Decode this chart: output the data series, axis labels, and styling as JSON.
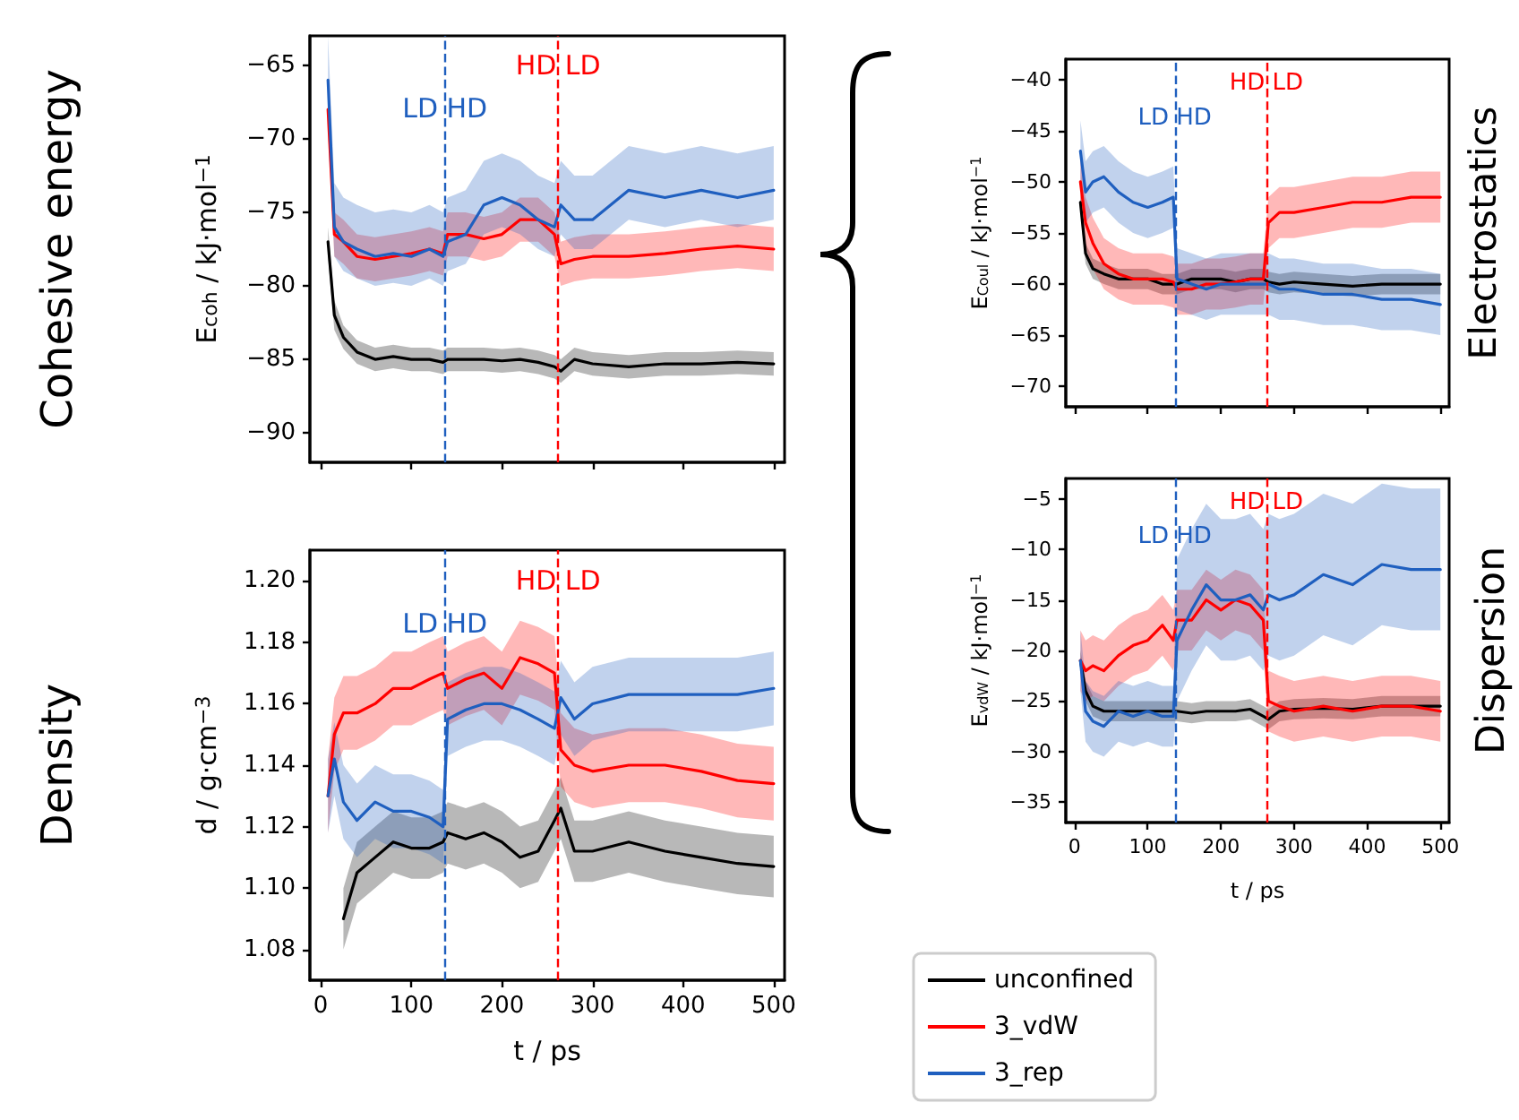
{
  "chart_data": [
    {
      "type": "line",
      "title": "Cohesive energy",
      "ylabel": "E$_{coh}$ / kJ·mol$^{−1}$",
      "tick_labels": "y",
      "xlim": [
        -12,
        512
      ],
      "xticks": [
        0,
        100,
        200,
        300,
        400,
        500
      ],
      "ylim": [
        -92,
        -63
      ],
      "yticks": [
        {
          "value": -90,
          "label": "−90"
        },
        {
          "value": -85,
          "label": "−85"
        },
        {
          "value": -80,
          "label": "−80"
        },
        {
          "value": -75,
          "label": "−75"
        },
        {
          "value": -70,
          "label": "−70"
        },
        {
          "value": -65,
          "label": "−65"
        }
      ],
      "x": [
        8,
        15,
        25,
        40,
        60,
        80,
        100,
        120,
        135,
        140,
        160,
        180,
        200,
        220,
        240,
        258,
        265,
        280,
        300,
        340,
        380,
        420,
        460,
        500
      ],
      "ref_lines": [
        {
          "axis": "x",
          "value": 137,
          "label": "LD HD",
          "color": "#1f5fbf",
          "line_style": "dashed"
        },
        {
          "axis": "x",
          "value": 262,
          "label": "HD LD",
          "color": "#ff0000",
          "line_style": "dashed"
        }
      ],
      "series": [
        {
          "color": "#000000",
          "values": [
            -77,
            -82,
            -83.5,
            -84.5,
            -85,
            -84.8,
            -85,
            -85,
            -85.2,
            -85,
            -85,
            -85,
            -85.1,
            -85,
            -85.2,
            -85.5,
            -85.8,
            -85,
            -85.3,
            -85.5,
            -85.3,
            -85.3,
            -85.2,
            -85.3
          ],
          "lower": [
            -78,
            -83,
            -84.3,
            -85.3,
            -85.8,
            -85.6,
            -85.8,
            -85.8,
            -86,
            -85.8,
            -85.8,
            -85.8,
            -85.9,
            -85.8,
            -86,
            -86.3,
            -86.6,
            -85.8,
            -86.1,
            -86.3,
            -86.1,
            -86.1,
            -86,
            -86.1
          ],
          "upper": [
            -76,
            -81,
            -82.7,
            -83.7,
            -84.2,
            -84,
            -84.2,
            -84.2,
            -84.4,
            -84.2,
            -84.2,
            -84.2,
            -84.3,
            -84.2,
            -84.4,
            -84.7,
            -85,
            -84.2,
            -84.5,
            -84.7,
            -84.5,
            -84.5,
            -84.4,
            -84.5
          ]
        },
        {
          "color": "#ff0000",
          "values": [
            -68,
            -76.5,
            -77,
            -78,
            -78.2,
            -78,
            -77.8,
            -77.5,
            -77.8,
            -76.5,
            -76.5,
            -76.8,
            -76.5,
            -75.5,
            -75.5,
            -76.5,
            -78.5,
            -78.2,
            -78,
            -78,
            -77.8,
            -77.5,
            -77.3,
            -77.5
          ],
          "lower": [
            -69.5,
            -78,
            -78.5,
            -79.5,
            -79.7,
            -79.5,
            -79.3,
            -79,
            -79.3,
            -78,
            -78,
            -78.3,
            -78,
            -77,
            -77,
            -78,
            -80,
            -79.7,
            -79.5,
            -79.5,
            -79.3,
            -79,
            -78.8,
            -79
          ],
          "upper": [
            -66.5,
            -75,
            -75.5,
            -76.5,
            -76.7,
            -76.5,
            -76.3,
            -76,
            -76.3,
            -75,
            -75,
            -75.3,
            -75,
            -74,
            -74,
            -75,
            -77,
            -76.7,
            -76.5,
            -76.5,
            -76.3,
            -76,
            -75.8,
            -76
          ]
        },
        {
          "color": "#1f5fbf",
          "values": [
            -66,
            -76,
            -77,
            -77.5,
            -78,
            -77.8,
            -78,
            -77.5,
            -78,
            -77,
            -76.5,
            -74.5,
            -74,
            -74.5,
            -75.5,
            -76,
            -74.5,
            -75.5,
            -75.5,
            -73.5,
            -74,
            -73.5,
            -74,
            -73.5
          ],
          "lower": [
            -68,
            -78,
            -79,
            -79.5,
            -80,
            -79.8,
            -80,
            -79.5,
            -80,
            -79,
            -78.5,
            -76.5,
            -76,
            -76.5,
            -77.5,
            -78,
            -76.5,
            -77.5,
            -77.5,
            -75.5,
            -76,
            -75.5,
            -76,
            -75.5
          ],
          "upper": [
            -63,
            -73,
            -74,
            -74.5,
            -75,
            -74.8,
            -75,
            -74.5,
            -75,
            -74,
            -73.5,
            -71.5,
            -71,
            -71.5,
            -72.5,
            -73,
            -71.5,
            -72.5,
            -72.5,
            -70.5,
            -71,
            -70.5,
            -71,
            -70.5
          ]
        }
      ]
    },
    {
      "type": "line",
      "title": "Density",
      "xlabel": "t / ps",
      "ylabel": "d / g·cm$^{−3}$",
      "xlim": [
        -12,
        512
      ],
      "xticks": [
        0,
        100,
        200,
        300,
        400,
        500
      ],
      "ylim": [
        1.07,
        1.21
      ],
      "yticks": [
        {
          "value": 1.08,
          "label": "1.08"
        },
        {
          "value": 1.1,
          "label": "1.10"
        },
        {
          "value": 1.12,
          "label": "1.12"
        },
        {
          "value": 1.14,
          "label": "1.14"
        },
        {
          "value": 1.16,
          "label": "1.16"
        },
        {
          "value": 1.18,
          "label": "1.18"
        },
        {
          "value": 1.2,
          "label": "1.20"
        }
      ],
      "x": [
        8,
        15,
        25,
        40,
        60,
        80,
        100,
        120,
        135,
        140,
        160,
        180,
        200,
        220,
        240,
        258,
        265,
        280,
        300,
        340,
        380,
        420,
        460,
        500
      ],
      "ref_lines": [
        {
          "axis": "x",
          "value": 137,
          "label": "LD HD",
          "color": "#1f5fbf",
          "line_style": "dashed"
        },
        {
          "axis": "x",
          "value": 262,
          "label": "HD LD",
          "color": "#ff0000",
          "line_style": "dashed"
        }
      ],
      "series": [
        {
          "color": "#000000",
          "values": [
            null,
            null,
            1.09,
            1.105,
            1.11,
            1.115,
            1.113,
            1.113,
            1.115,
            1.118,
            1.116,
            1.118,
            1.115,
            1.11,
            1.112,
            1.122,
            1.126,
            1.112,
            1.112,
            1.115,
            1.112,
            1.11,
            1.108,
            1.107
          ],
          "lower": [
            null,
            null,
            1.08,
            1.095,
            1.1,
            1.105,
            1.103,
            1.103,
            1.105,
            1.108,
            1.106,
            1.108,
            1.105,
            1.1,
            1.102,
            1.112,
            1.116,
            1.102,
            1.102,
            1.105,
            1.102,
            1.1,
            1.098,
            1.097
          ],
          "upper": [
            null,
            null,
            1.1,
            1.115,
            1.12,
            1.125,
            1.123,
            1.123,
            1.125,
            1.128,
            1.126,
            1.128,
            1.125,
            1.12,
            1.122,
            1.132,
            1.136,
            1.122,
            1.122,
            1.125,
            1.122,
            1.12,
            1.118,
            1.117
          ]
        },
        {
          "color": "#ff0000",
          "values": [
            1.13,
            1.15,
            1.157,
            1.157,
            1.16,
            1.165,
            1.165,
            1.168,
            1.17,
            1.165,
            1.168,
            1.17,
            1.165,
            1.175,
            1.173,
            1.17,
            1.145,
            1.14,
            1.138,
            1.14,
            1.14,
            1.138,
            1.135,
            1.134
          ],
          "lower": [
            1.118,
            1.138,
            1.145,
            1.145,
            1.148,
            1.153,
            1.153,
            1.156,
            1.158,
            1.153,
            1.156,
            1.158,
            1.153,
            1.163,
            1.161,
            1.158,
            1.133,
            1.128,
            1.126,
            1.128,
            1.128,
            1.126,
            1.123,
            1.122
          ],
          "upper": [
            1.142,
            1.162,
            1.169,
            1.169,
            1.172,
            1.177,
            1.177,
            1.18,
            1.182,
            1.177,
            1.18,
            1.182,
            1.177,
            1.187,
            1.185,
            1.182,
            1.157,
            1.152,
            1.15,
            1.152,
            1.152,
            1.15,
            1.147,
            1.146
          ]
        },
        {
          "color": "#1f5fbf",
          "values": [
            1.13,
            1.142,
            1.128,
            1.122,
            1.128,
            1.125,
            1.125,
            1.123,
            1.12,
            1.155,
            1.158,
            1.16,
            1.16,
            1.158,
            1.155,
            1.152,
            1.162,
            1.155,
            1.16,
            1.163,
            1.163,
            1.163,
            1.163,
            1.165
          ],
          "lower": [
            1.118,
            1.13,
            1.116,
            1.11,
            1.116,
            1.113,
            1.113,
            1.111,
            1.108,
            1.143,
            1.146,
            1.148,
            1.148,
            1.146,
            1.143,
            1.14,
            1.15,
            1.143,
            1.148,
            1.151,
            1.151,
            1.151,
            1.151,
            1.153
          ],
          "upper": [
            1.142,
            1.154,
            1.14,
            1.134,
            1.14,
            1.137,
            1.137,
            1.135,
            1.132,
            1.167,
            1.17,
            1.172,
            1.172,
            1.17,
            1.167,
            1.164,
            1.174,
            1.167,
            1.172,
            1.175,
            1.175,
            1.175,
            1.175,
            1.177
          ]
        }
      ]
    },
    {
      "type": "line",
      "title": "Electrostatics",
      "ylabel": "E$_{Coul}$ / kJ·mol$^{−1}$",
      "tick_labels": "y",
      "xlim": [
        -12,
        512
      ],
      "xticks": [
        0,
        100,
        200,
        300,
        400,
        500
      ],
      "ylim": [
        -72,
        -38
      ],
      "yticks": [
        {
          "value": -70,
          "label": "−70"
        },
        {
          "value": -65,
          "label": "−65"
        },
        {
          "value": -60,
          "label": "−60"
        },
        {
          "value": -55,
          "label": "−55"
        },
        {
          "value": -50,
          "label": "−50"
        },
        {
          "value": -45,
          "label": "−45"
        },
        {
          "value": -40,
          "label": "−40"
        }
      ],
      "x": [
        8,
        15,
        25,
        40,
        60,
        80,
        100,
        120,
        135,
        140,
        160,
        180,
        200,
        220,
        240,
        258,
        265,
        280,
        300,
        340,
        380,
        420,
        460,
        500
      ],
      "ref_lines": [
        {
          "axis": "x",
          "value": 137,
          "label": "LD HD",
          "color": "#1f5fbf",
          "line_style": "dashed"
        },
        {
          "axis": "x",
          "value": 262,
          "label": "HD LD",
          "color": "#ff0000",
          "line_style": "dashed"
        }
      ],
      "series": [
        {
          "color": "#000000",
          "values": [
            -52,
            -57,
            -58.5,
            -59,
            -59.5,
            -59.5,
            -59.5,
            -60,
            -60,
            -60,
            -59.5,
            -59.5,
            -59.5,
            -59.8,
            -59.5,
            -59.5,
            -59.8,
            -60,
            -59.8,
            -60,
            -60.2,
            -60,
            -60,
            -60
          ],
          "lower": [
            -53,
            -58,
            -59.5,
            -60,
            -60.5,
            -60.5,
            -60.5,
            -61,
            -61,
            -61,
            -60.5,
            -60.5,
            -60.5,
            -60.8,
            -60.5,
            -60.5,
            -60.8,
            -61,
            -60.8,
            -61,
            -61.2,
            -61,
            -61,
            -61
          ],
          "upper": [
            -51,
            -56,
            -57.5,
            -58,
            -58.5,
            -58.5,
            -58.5,
            -59,
            -59,
            -59,
            -58.5,
            -58.5,
            -58.5,
            -58.8,
            -58.5,
            -58.5,
            -58.8,
            -59,
            -58.8,
            -59,
            -59.2,
            -59,
            -59,
            -59
          ]
        },
        {
          "color": "#ff0000",
          "values": [
            -50,
            -54,
            -56,
            -58,
            -59,
            -59.5,
            -59.5,
            -59.5,
            -59.8,
            -60.5,
            -60.5,
            -60,
            -60,
            -59.8,
            -59.5,
            -59.5,
            -54,
            -53,
            -53,
            -52.5,
            -52,
            -52,
            -51.5,
            -51.5
          ],
          "lower": [
            -52.5,
            -56.5,
            -58.5,
            -60.5,
            -61.5,
            -62,
            -62,
            -62,
            -62.3,
            -63,
            -63,
            -62.5,
            -62.5,
            -62.3,
            -62,
            -62,
            -56.5,
            -55.5,
            -55.5,
            -55,
            -54.5,
            -54.5,
            -54,
            -54
          ],
          "upper": [
            -47.5,
            -51.5,
            -53.5,
            -55.5,
            -56.5,
            -57,
            -57,
            -57,
            -57.3,
            -58,
            -58,
            -57.5,
            -57.5,
            -57.3,
            -57,
            -57,
            -51.5,
            -50.5,
            -50.5,
            -50,
            -49.5,
            -49.5,
            -49,
            -49
          ]
        },
        {
          "color": "#1f5fbf",
          "values": [
            -47,
            -51,
            -50,
            -49.5,
            -51,
            -52,
            -52.5,
            -52,
            -51.5,
            -59.5,
            -60,
            -60.5,
            -60,
            -60,
            -60,
            -60,
            -60,
            -60.5,
            -60.5,
            -61,
            -61,
            -61.5,
            -61.5,
            -62
          ],
          "lower": [
            -50,
            -54,
            -53,
            -52.5,
            -54,
            -55,
            -55.5,
            -55,
            -54.5,
            -62.5,
            -63,
            -63.5,
            -63,
            -63,
            -63,
            -63,
            -63,
            -63.5,
            -63.5,
            -64,
            -64,
            -64.5,
            -64.5,
            -65
          ],
          "upper": [
            -44,
            -48,
            -47,
            -46.5,
            -48,
            -49,
            -49.5,
            -49,
            -48.5,
            -56.5,
            -57,
            -57.5,
            -57,
            -57,
            -57,
            -57,
            -57,
            -57.5,
            -57.5,
            -58,
            -58,
            -58.5,
            -58.5,
            -59
          ]
        }
      ]
    },
    {
      "type": "line",
      "title": "Dispersion",
      "xlabel": "t / ps",
      "ylabel": "E$_{vdW}$ / kJ·mol$^{−1}$",
      "legend": "bottom",
      "xlim": [
        -12,
        512
      ],
      "xticks": [
        0,
        100,
        200,
        300,
        400,
        500
      ],
      "ylim": [
        -37,
        -3
      ],
      "yticks": [
        {
          "value": -35,
          "label": "−35"
        },
        {
          "value": -30,
          "label": "−30"
        },
        {
          "value": -25,
          "label": "−25"
        },
        {
          "value": -20,
          "label": "−20"
        },
        {
          "value": -15,
          "label": "−15"
        },
        {
          "value": -10,
          "label": "−10"
        },
        {
          "value": -5,
          "label": "−5"
        }
      ],
      "x": [
        8,
        15,
        25,
        40,
        60,
        80,
        100,
        120,
        135,
        140,
        160,
        180,
        200,
        220,
        240,
        258,
        265,
        280,
        300,
        340,
        380,
        420,
        460,
        500
      ],
      "ref_lines": [
        {
          "axis": "x",
          "value": 137,
          "label": "LD HD",
          "color": "#1f5fbf",
          "line_style": "dashed"
        },
        {
          "axis": "x",
          "value": 262,
          "label": "HD LD",
          "color": "#ff0000",
          "line_style": "dashed"
        }
      ],
      "series": [
        {
          "name": "unconfined",
          "color": "#000000",
          "values": [
            -21,
            -24,
            -25.5,
            -26,
            -26,
            -26,
            -26,
            -26,
            -26,
            -26,
            -26.2,
            -26,
            -26,
            -26,
            -25.8,
            -26.5,
            -26.8,
            -26,
            -25.8,
            -25.7,
            -25.8,
            -25.5,
            -25.5,
            -25.5
          ],
          "lower": [
            -22,
            -25,
            -26.5,
            -27,
            -27,
            -27,
            -27,
            -27,
            -27,
            -27,
            -27.2,
            -27,
            -27,
            -27,
            -26.8,
            -27.5,
            -27.8,
            -27,
            -26.8,
            -26.7,
            -26.8,
            -26.5,
            -26.5,
            -26.5
          ],
          "upper": [
            -20,
            -23,
            -24.5,
            -25,
            -25,
            -25,
            -25,
            -25,
            -25,
            -25,
            -25.2,
            -25,
            -25,
            -25,
            -24.8,
            -25.5,
            -25.8,
            -25,
            -24.8,
            -24.7,
            -24.8,
            -24.5,
            -24.5,
            -24.5
          ]
        },
        {
          "name": "3_vdW",
          "color": "#ff0000",
          "values": [
            -21,
            -22,
            -21.5,
            -22,
            -20.5,
            -19.5,
            -19,
            -17.5,
            -19,
            -17,
            -17,
            -15,
            -16,
            -15,
            -15.5,
            -17,
            -25,
            -25.5,
            -26,
            -25.5,
            -26,
            -25.5,
            -25.5,
            -26
          ],
          "lower": [
            -24,
            -25,
            -24.5,
            -25,
            -23.5,
            -22.5,
            -22,
            -20.5,
            -22,
            -20,
            -20,
            -18,
            -19,
            -18,
            -18.5,
            -20,
            -28,
            -28.5,
            -29,
            -28.5,
            -29,
            -28.5,
            -28.5,
            -29
          ],
          "upper": [
            -18,
            -19,
            -18.5,
            -19,
            -17.5,
            -16.5,
            -16,
            -14.5,
            -16,
            -14,
            -14,
            -12,
            -13,
            -12,
            -12.5,
            -14,
            -22,
            -22.5,
            -23,
            -22.5,
            -23,
            -22.5,
            -22.5,
            -23
          ]
        },
        {
          "name": "3_rep",
          "color": "#1f5fbf",
          "values": [
            -21,
            -26,
            -27,
            -27.5,
            -26,
            -26.5,
            -26,
            -26.5,
            -26.5,
            -19,
            -16,
            -13.5,
            -15,
            -15,
            -14.5,
            -16,
            -14.5,
            -15,
            -14.5,
            -12.5,
            -13.5,
            -11.5,
            -12,
            -12
          ],
          "lower": [
            -24,
            -29,
            -30,
            -30.5,
            -29,
            -29.5,
            -29,
            -29.5,
            -29.5,
            -25,
            -22,
            -19.5,
            -21,
            -21,
            -20.5,
            -22,
            -20.5,
            -21,
            -20.5,
            -18.5,
            -19.5,
            -17.5,
            -18,
            -18
          ],
          "upper": [
            -18,
            -23,
            -24,
            -24.5,
            -23,
            -23.5,
            -23,
            -23.5,
            -23.5,
            -11,
            -8,
            -5.5,
            -7,
            -7,
            -6.5,
            -8,
            -6.5,
            -7,
            -6.5,
            -4.5,
            -5.5,
            -3.5,
            -4,
            -4
          ]
        }
      ]
    }
  ]
}
